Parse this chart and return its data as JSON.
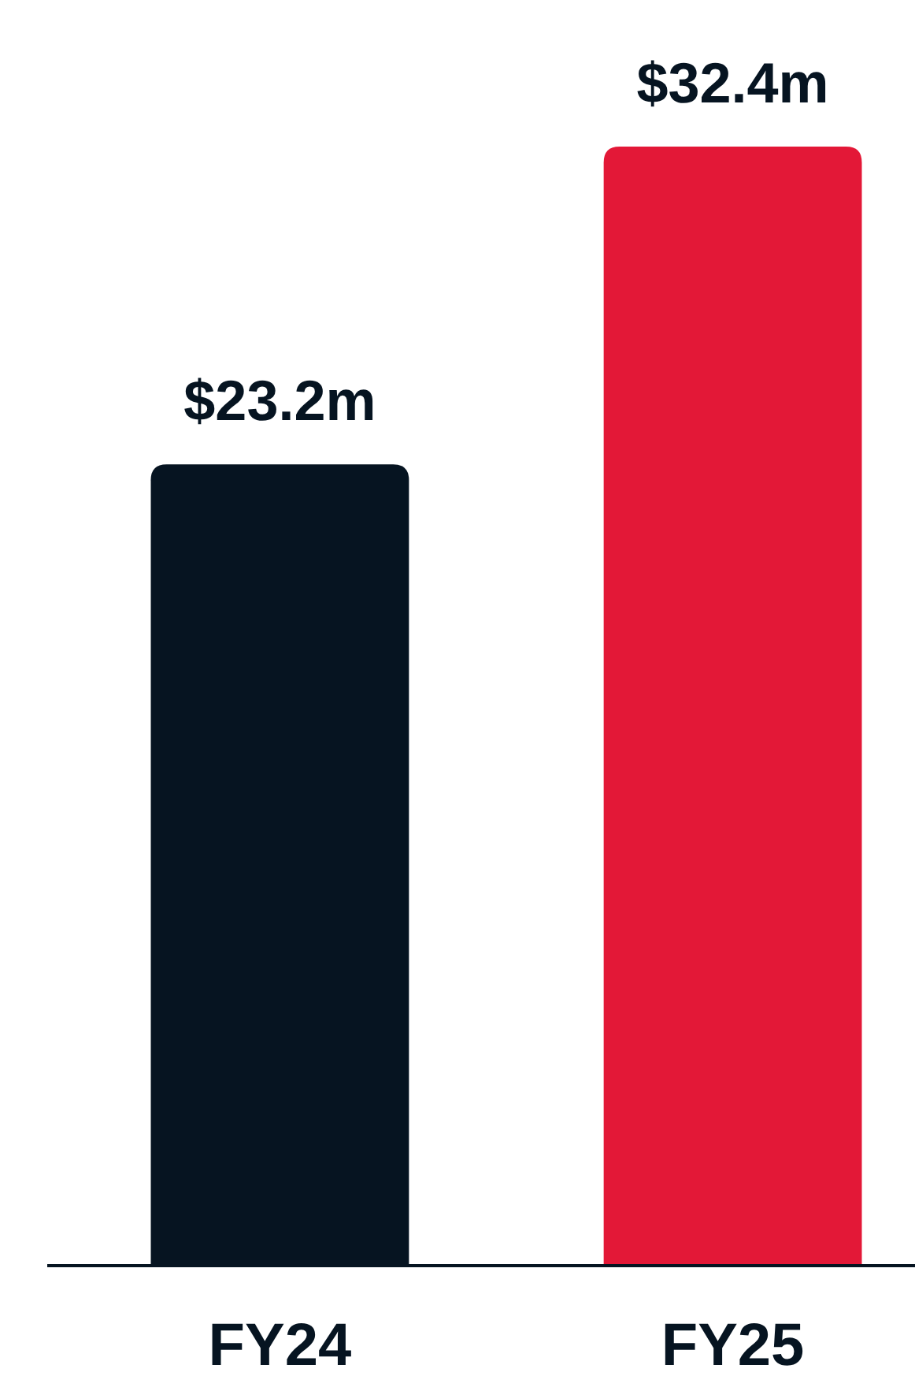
{
  "chart_data": {
    "type": "bar",
    "categories": [
      "FY24",
      "FY25"
    ],
    "values": [
      23.2,
      32.4
    ],
    "colors": [
      "#061421",
      "#e31837"
    ],
    "value_labels": [
      "$23.2m",
      "$32.4m"
    ]
  }
}
